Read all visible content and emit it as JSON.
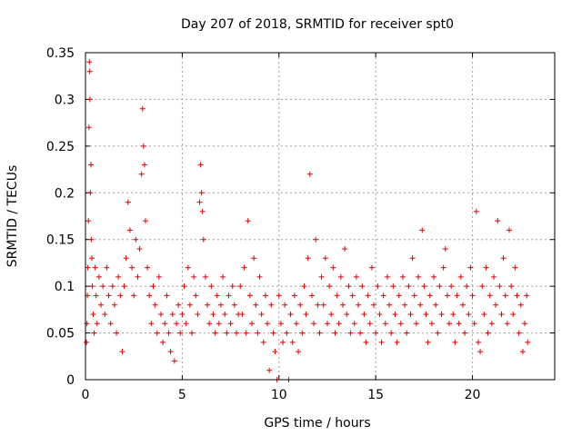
{
  "chart_data": {
    "type": "scatter",
    "title": "Day 207 of 2018, SRMTID for receiver spt0",
    "xlabel": "GPS time / hours",
    "ylabel": "SRMTID / TECUs",
    "xlim": [
      0,
      24.25
    ],
    "ylim": [
      0,
      0.35
    ],
    "xticks": [
      0,
      5,
      10,
      15,
      20
    ],
    "xtick_labels": [
      "0",
      "5",
      "10",
      "15",
      "20"
    ],
    "yticks": [
      0,
      0.05,
      0.1,
      0.15,
      0.2,
      0.25,
      0.3,
      0.35
    ],
    "ytick_labels": [
      "0",
      "0.05",
      "0.1",
      "0.15",
      "0.2",
      "0.25",
      "0.3",
      "0.35"
    ],
    "grid": true,
    "marker": "+",
    "color": "#e00000",
    "series": [
      {
        "name": "spt0",
        "points": [
          [
            0.05,
            0.04
          ],
          [
            0.08,
            0.06
          ],
          [
            0.1,
            0.09
          ],
          [
            0.12,
            0.12
          ],
          [
            0.15,
            0.17
          ],
          [
            0.18,
            0.27
          ],
          [
            0.2,
            0.34
          ],
          [
            0.22,
            0.33
          ],
          [
            0.23,
            0.3
          ],
          [
            0.25,
            0.2
          ],
          [
            0.28,
            0.23
          ],
          [
            0.3,
            0.15
          ],
          [
            0.33,
            0.13
          ],
          [
            0.35,
            0.1
          ],
          [
            0.4,
            0.07
          ],
          [
            0.45,
            0.05
          ],
          [
            0.5,
            0.12
          ],
          [
            0.55,
            0.09
          ],
          [
            0.6,
            0.06
          ],
          [
            0.7,
            0.11
          ],
          [
            0.8,
            0.08
          ],
          [
            0.9,
            0.1
          ],
          [
            1.0,
            0.07
          ],
          [
            1.1,
            0.12
          ],
          [
            1.2,
            0.09
          ],
          [
            1.3,
            0.06
          ],
          [
            1.4,
            0.1
          ],
          [
            1.5,
            0.08
          ],
          [
            1.6,
            0.05
          ],
          [
            1.7,
            0.11
          ],
          [
            1.8,
            0.09
          ],
          [
            1.9,
            0.03
          ],
          [
            2.0,
            0.1
          ],
          [
            2.1,
            0.13
          ],
          [
            2.2,
            0.19
          ],
          [
            2.3,
            0.16
          ],
          [
            2.4,
            0.12
          ],
          [
            2.5,
            0.09
          ],
          [
            2.6,
            0.15
          ],
          [
            2.7,
            0.11
          ],
          [
            2.8,
            0.14
          ],
          [
            2.9,
            0.22
          ],
          [
            2.95,
            0.29
          ],
          [
            3.0,
            0.25
          ],
          [
            3.05,
            0.23
          ],
          [
            3.1,
            0.17
          ],
          [
            3.2,
            0.12
          ],
          [
            3.3,
            0.09
          ],
          [
            3.4,
            0.06
          ],
          [
            3.5,
            0.1
          ],
          [
            3.6,
            0.08
          ],
          [
            3.7,
            0.05
          ],
          [
            3.8,
            0.11
          ],
          [
            3.9,
            0.07
          ],
          [
            4.0,
            0.04
          ],
          [
            4.1,
            0.06
          ],
          [
            4.2,
            0.09
          ],
          [
            4.3,
            0.05
          ],
          [
            4.4,
            0.03
          ],
          [
            4.5,
            0.07
          ],
          [
            4.6,
            0.02
          ],
          [
            4.7,
            0.06
          ],
          [
            4.8,
            0.08
          ],
          [
            4.9,
            0.05
          ],
          [
            5.0,
            0.07
          ],
          [
            5.1,
            0.1
          ],
          [
            5.2,
            0.06
          ],
          [
            5.3,
            0.12
          ],
          [
            5.4,
            0.08
          ],
          [
            5.5,
            0.05
          ],
          [
            5.6,
            0.11
          ],
          [
            5.7,
            0.09
          ],
          [
            5.8,
            0.07
          ],
          [
            5.9,
            0.19
          ],
          [
            5.95,
            0.23
          ],
          [
            6.0,
            0.2
          ],
          [
            6.05,
            0.18
          ],
          [
            6.1,
            0.15
          ],
          [
            6.2,
            0.11
          ],
          [
            6.3,
            0.08
          ],
          [
            6.4,
            0.06
          ],
          [
            6.5,
            0.1
          ],
          [
            6.6,
            0.07
          ],
          [
            6.7,
            0.05
          ],
          [
            6.8,
            0.09
          ],
          [
            6.9,
            0.06
          ],
          [
            7.0,
            0.08
          ],
          [
            7.1,
            0.11
          ],
          [
            7.2,
            0.07
          ],
          [
            7.3,
            0.05
          ],
          [
            7.4,
            0.09
          ],
          [
            7.5,
            0.06
          ],
          [
            7.6,
            0.1
          ],
          [
            7.7,
            0.08
          ],
          [
            7.8,
            0.05
          ],
          [
            7.9,
            0.07
          ],
          [
            8.0,
            0.1
          ],
          [
            8.1,
            0.07
          ],
          [
            8.2,
            0.12
          ],
          [
            8.3,
            0.05
          ],
          [
            8.4,
            0.17
          ],
          [
            8.5,
            0.09
          ],
          [
            8.6,
            0.06
          ],
          [
            8.7,
            0.13
          ],
          [
            8.8,
            0.08
          ],
          [
            8.9,
            0.05
          ],
          [
            9.0,
            0.11
          ],
          [
            9.1,
            0.07
          ],
          [
            9.2,
            0.04
          ],
          [
            9.3,
            0.09
          ],
          [
            9.4,
            0.06
          ],
          [
            9.5,
            0.01
          ],
          [
            9.6,
            0.08
          ],
          [
            9.7,
            0.05
          ],
          [
            9.8,
            0.03
          ],
          [
            9.9,
            0.0
          ],
          [
            10.0,
            0.09
          ],
          [
            10.1,
            0.06
          ],
          [
            10.2,
            0.04
          ],
          [
            10.3,
            0.08
          ],
          [
            10.4,
            0.05
          ],
          [
            10.5,
            0.0
          ],
          [
            10.6,
            0.07
          ],
          [
            10.7,
            0.04
          ],
          [
            10.8,
            0.09
          ],
          [
            10.9,
            0.06
          ],
          [
            11.0,
            0.03
          ],
          [
            11.1,
            0.08
          ],
          [
            11.2,
            0.05
          ],
          [
            11.3,
            0.1
          ],
          [
            11.4,
            0.07
          ],
          [
            11.5,
            0.13
          ],
          [
            11.6,
            0.22
          ],
          [
            11.7,
            0.09
          ],
          [
            11.8,
            0.06
          ],
          [
            11.9,
            0.15
          ],
          [
            12.0,
            0.08
          ],
          [
            12.1,
            0.05
          ],
          [
            12.2,
            0.11
          ],
          [
            12.3,
            0.08
          ],
          [
            12.4,
            0.13
          ],
          [
            12.5,
            0.06
          ],
          [
            12.6,
            0.1
          ],
          [
            12.7,
            0.07
          ],
          [
            12.8,
            0.12
          ],
          [
            12.9,
            0.05
          ],
          [
            13.0,
            0.09
          ],
          [
            13.1,
            0.06
          ],
          [
            13.2,
            0.11
          ],
          [
            13.3,
            0.08
          ],
          [
            13.4,
            0.14
          ],
          [
            13.5,
            0.07
          ],
          [
            13.6,
            0.1
          ],
          [
            13.7,
            0.05
          ],
          [
            13.8,
            0.09
          ],
          [
            13.9,
            0.06
          ],
          [
            14.0,
            0.11
          ],
          [
            14.1,
            0.08
          ],
          [
            14.2,
            0.05
          ],
          [
            14.3,
            0.1
          ],
          [
            14.4,
            0.07
          ],
          [
            14.5,
            0.04
          ],
          [
            14.6,
            0.09
          ],
          [
            14.7,
            0.06
          ],
          [
            14.8,
            0.12
          ],
          [
            14.9,
            0.08
          ],
          [
            15.0,
            0.05
          ],
          [
            15.1,
            0.1
          ],
          [
            15.2,
            0.07
          ],
          [
            15.3,
            0.04
          ],
          [
            15.4,
            0.09
          ],
          [
            15.5,
            0.06
          ],
          [
            15.6,
            0.11
          ],
          [
            15.7,
            0.08
          ],
          [
            15.8,
            0.05
          ],
          [
            15.9,
            0.1
          ],
          [
            16.0,
            0.07
          ],
          [
            16.1,
            0.04
          ],
          [
            16.2,
            0.09
          ],
          [
            16.3,
            0.06
          ],
          [
            16.4,
            0.11
          ],
          [
            16.5,
            0.08
          ],
          [
            16.6,
            0.05
          ],
          [
            16.7,
            0.1
          ],
          [
            16.8,
            0.07
          ],
          [
            16.9,
            0.13
          ],
          [
            17.0,
            0.09
          ],
          [
            17.1,
            0.06
          ],
          [
            17.2,
            0.11
          ],
          [
            17.3,
            0.08
          ],
          [
            17.4,
            0.16
          ],
          [
            17.5,
            0.1
          ],
          [
            17.6,
            0.07
          ],
          [
            17.7,
            0.04
          ],
          [
            17.8,
            0.09
          ],
          [
            17.9,
            0.06
          ],
          [
            18.0,
            0.11
          ],
          [
            18.1,
            0.08
          ],
          [
            18.2,
            0.05
          ],
          [
            18.3,
            0.1
          ],
          [
            18.4,
            0.07
          ],
          [
            18.5,
            0.12
          ],
          [
            18.6,
            0.14
          ],
          [
            18.7,
            0.09
          ],
          [
            18.8,
            0.06
          ],
          [
            18.9,
            0.1
          ],
          [
            19.0,
            0.07
          ],
          [
            19.1,
            0.04
          ],
          [
            19.2,
            0.09
          ],
          [
            19.3,
            0.06
          ],
          [
            19.4,
            0.11
          ],
          [
            19.5,
            0.08
          ],
          [
            19.6,
            0.05
          ],
          [
            19.7,
            0.1
          ],
          [
            19.8,
            0.07
          ],
          [
            19.9,
            0.12
          ],
          [
            20.0,
            0.09
          ],
          [
            20.1,
            0.06
          ],
          [
            20.2,
            0.18
          ],
          [
            20.3,
            0.04
          ],
          [
            20.4,
            0.03
          ],
          [
            20.5,
            0.1
          ],
          [
            20.6,
            0.07
          ],
          [
            20.7,
            0.12
          ],
          [
            20.8,
            0.05
          ],
          [
            20.9,
            0.09
          ],
          [
            21.0,
            0.06
          ],
          [
            21.1,
            0.11
          ],
          [
            21.2,
            0.08
          ],
          [
            21.3,
            0.17
          ],
          [
            21.4,
            0.1
          ],
          [
            21.5,
            0.07
          ],
          [
            21.6,
            0.13
          ],
          [
            21.7,
            0.09
          ],
          [
            21.8,
            0.06
          ],
          [
            21.9,
            0.16
          ],
          [
            22.0,
            0.1
          ],
          [
            22.1,
            0.07
          ],
          [
            22.2,
            0.12
          ],
          [
            22.3,
            0.09
          ],
          [
            22.4,
            0.05
          ],
          [
            22.5,
            0.08
          ],
          [
            22.6,
            0.03
          ],
          [
            22.7,
            0.06
          ],
          [
            22.8,
            0.09
          ],
          [
            22.85,
            0.04
          ]
        ]
      }
    ]
  }
}
